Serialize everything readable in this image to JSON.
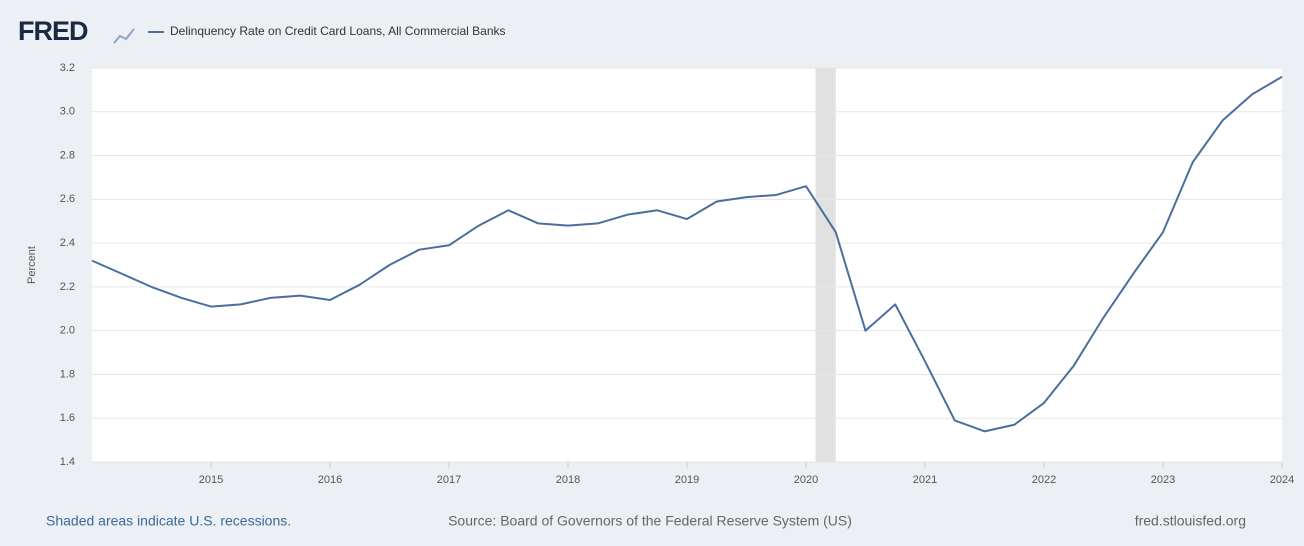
{
  "chart_data": {
    "type": "line",
    "logo": "FRED",
    "title": "Delinquency Rate on Credit Card Loans, All Commercial Banks",
    "ylabel": "Percent",
    "x": [
      2014,
      2014.25,
      2014.5,
      2014.75,
      2015,
      2015.25,
      2015.5,
      2015.75,
      2016,
      2016.25,
      2016.5,
      2016.75,
      2017,
      2017.25,
      2017.5,
      2017.75,
      2018,
      2018.25,
      2018.5,
      2018.75,
      2019,
      2019.25,
      2019.5,
      2019.75,
      2020,
      2020.25,
      2020.5,
      2020.75,
      2021,
      2021.25,
      2021.5,
      2021.75,
      2022,
      2022.25,
      2022.5,
      2022.75,
      2023,
      2023.25,
      2023.5,
      2023.75,
      2024
    ],
    "series": [
      {
        "name": "Delinquency Rate on Credit Card Loans, All Commercial Banks",
        "color": "#4a6f9c",
        "values": [
          2.32,
          2.26,
          2.2,
          2.15,
          2.11,
          2.12,
          2.15,
          2.16,
          2.14,
          2.21,
          2.3,
          2.37,
          2.39,
          2.48,
          2.55,
          2.49,
          2.48,
          2.49,
          2.53,
          2.55,
          2.51,
          2.59,
          2.61,
          2.62,
          2.66,
          2.45,
          2.0,
          2.12,
          1.86,
          1.59,
          1.54,
          1.57,
          1.67,
          1.84,
          2.06,
          2.26,
          2.45,
          2.77,
          2.96,
          3.08,
          3.16
        ]
      }
    ],
    "recessions": [
      [
        2020.08,
        2020.25
      ]
    ],
    "xlim": [
      2014,
      2024
    ],
    "xticks": [
      2015,
      2016,
      2017,
      2018,
      2019,
      2020,
      2021,
      2022,
      2023,
      2024
    ],
    "ylim": [
      1.4,
      3.2
    ],
    "yticks": [
      1.4,
      1.6,
      1.8,
      {
        "value": 2,
        "label": "2.0"
      },
      2.2,
      2.4,
      2.6,
      2.8,
      {
        "value": 3,
        "label": "3.0"
      },
      3.2
    ],
    "grid": true,
    "footer_left": "Shaded areas indicate U.S. recessions.",
    "footer_center": "Source: Board of Governors of the Federal Reserve System (US)",
    "footer_right": "fred.stlouisfed.org"
  }
}
